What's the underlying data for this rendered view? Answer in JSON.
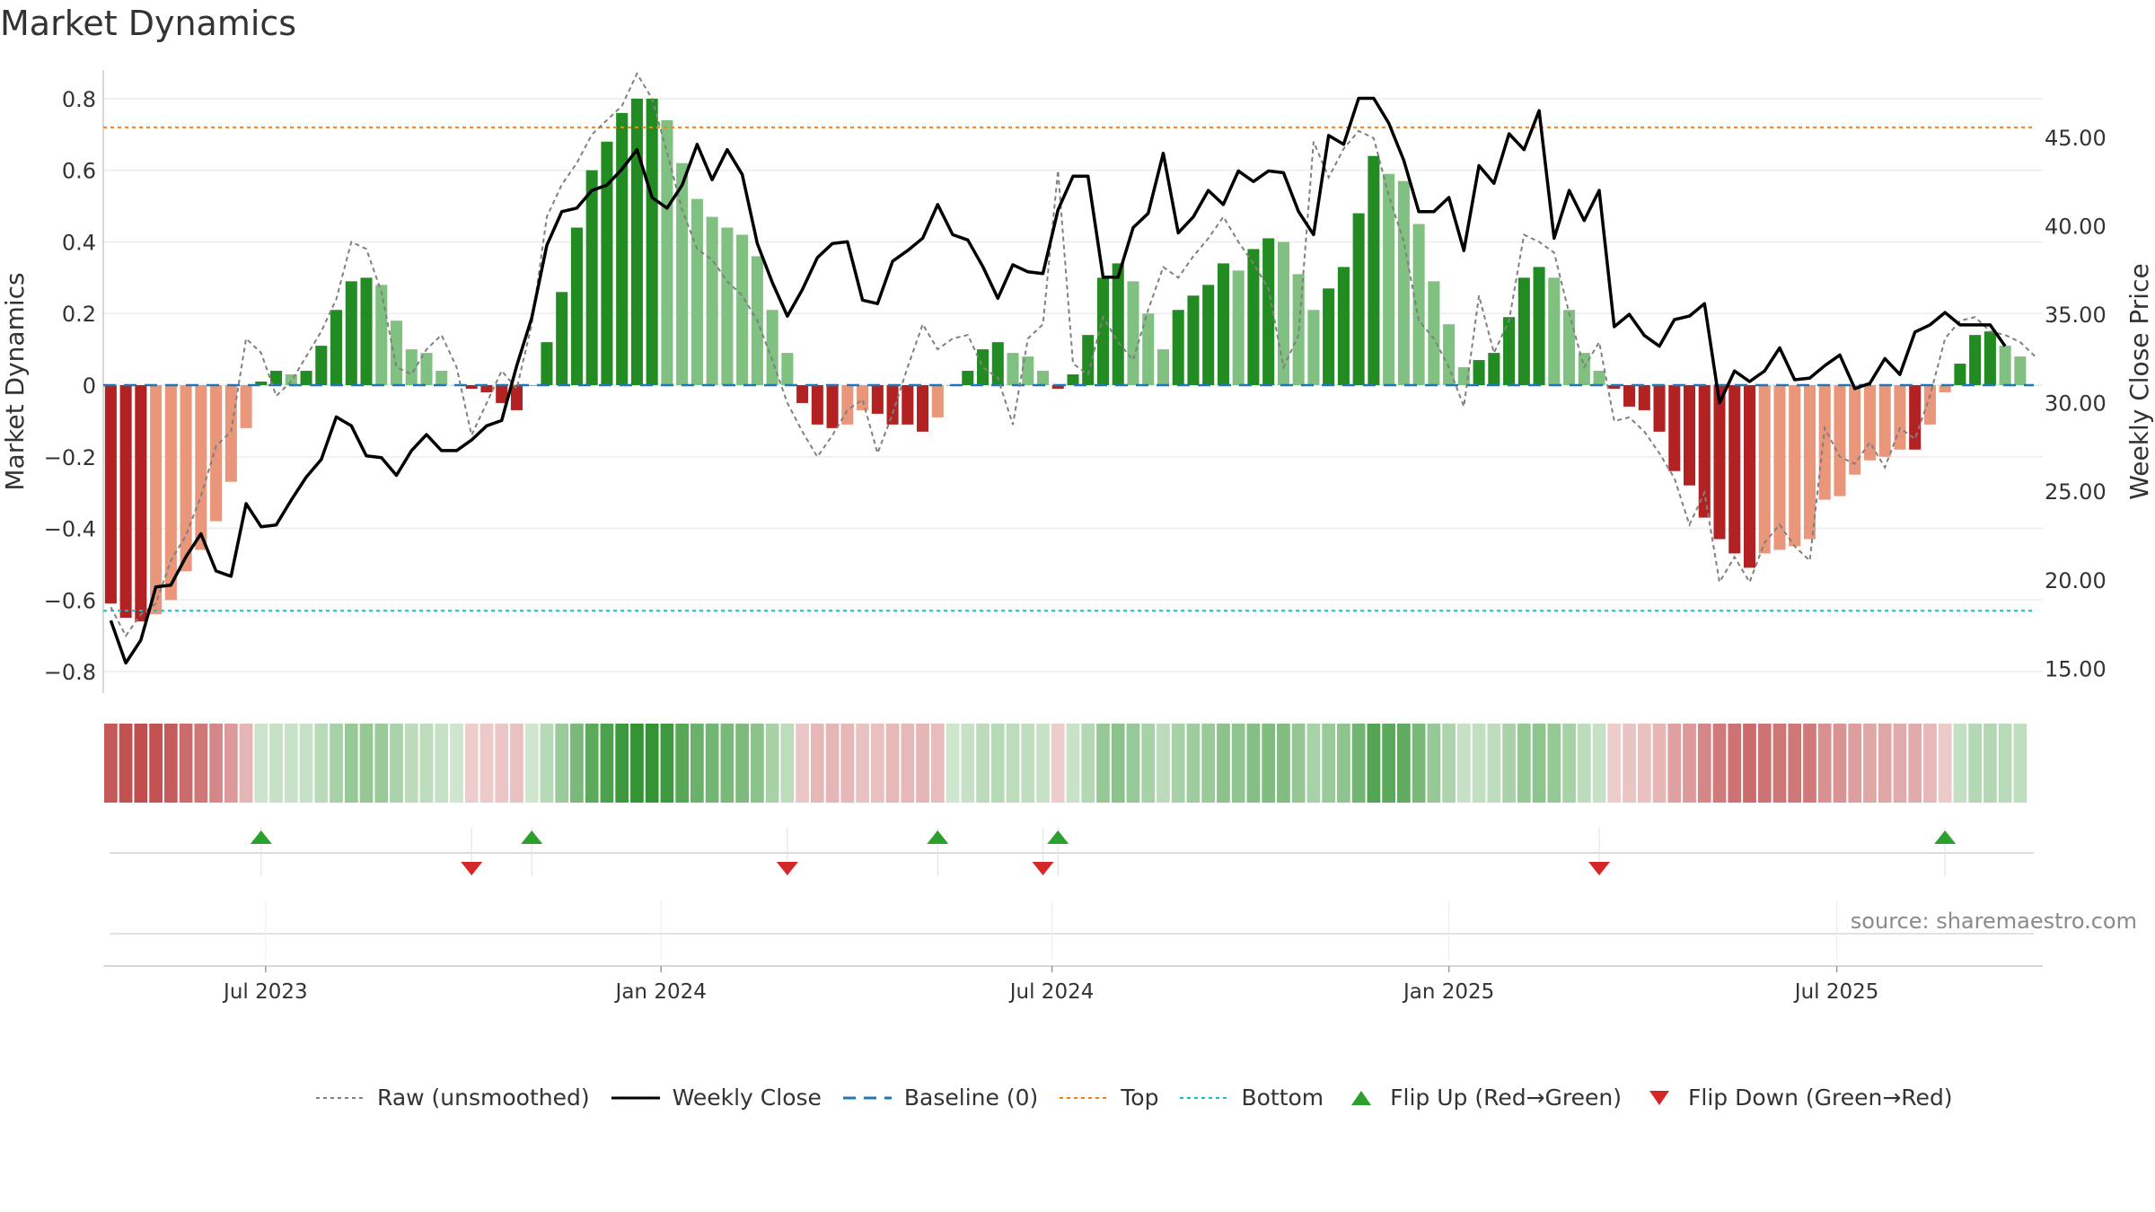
{
  "title": "Market Dynamics",
  "watermark": "source: sharemaestro.com",
  "colors": {
    "green_strong": "#228b22",
    "green_light": "#80c080",
    "red_strong": "#b22222",
    "red_light": "#e9967a",
    "close_line": "#000000",
    "raw_line": "#808080",
    "baseline": "#1f77b4",
    "top": "#ff7f0e",
    "bottom": "#17becf",
    "flip_up": "#2ca02c",
    "flip_down": "#d62728"
  },
  "legend": [
    {
      "label": "Raw (unsmoothed)",
      "icon": "gray-dotted-line"
    },
    {
      "label": "Weekly Close",
      "icon": "black-solid-line"
    },
    {
      "label": "Baseline (0)",
      "icon": "blue-dashed-line"
    },
    {
      "label": "Top",
      "icon": "orange-dotted-line"
    },
    {
      "label": "Bottom",
      "icon": "cyan-dotted-line"
    },
    {
      "label": "Flip Up (Red→Green)",
      "icon": "green-triangle-up"
    },
    {
      "label": "Flip Down (Green→Red)",
      "icon": "red-triangle-down"
    }
  ],
  "chart_data": {
    "type": "bar",
    "title": "Market Dynamics",
    "ylabel": "Market Dynamics",
    "y2label": "Weekly Close Price",
    "ylim": [
      -0.86,
      0.88
    ],
    "y2lim": [
      13.6,
      48.8
    ],
    "yticks": [
      "0.8",
      "0.6",
      "0.4",
      "0.2",
      "0",
      "−0.2",
      "−0.4",
      "−0.6",
      "−0.8"
    ],
    "ytick_values": [
      0.8,
      0.6,
      0.4,
      0.2,
      0,
      -0.2,
      -0.4,
      -0.6,
      -0.8
    ],
    "y2ticks": [
      "45.00",
      "40.00",
      "35.00",
      "30.00",
      "25.00",
      "20.00",
      "15.00"
    ],
    "y2tick_values": [
      45,
      40,
      35,
      30,
      25,
      20,
      15
    ],
    "xlim_weeks": [
      -0.5,
      128.5
    ],
    "xticks": [
      {
        "label": "Jul 2023",
        "week": 10.3
      },
      {
        "label": "Jan 2024",
        "week": 36.6
      },
      {
        "label": "Jul 2024",
        "week": 62.6
      },
      {
        "label": "Jan 2025",
        "week": 89.0
      },
      {
        "label": "Jul 2025",
        "week": 114.8
      }
    ],
    "top_level": 0.72,
    "bottom_level": -0.63,
    "baseline_level": 0,
    "grid": true,
    "legend_position": "bottom",
    "flip_up_weeks": [
      10,
      28,
      55,
      63,
      122
    ],
    "flip_down_weeks": [
      24,
      45,
      62,
      99
    ],
    "series": [
      {
        "name": "Market Dynamics",
        "values": [
          -0.61,
          -0.65,
          -0.66,
          -0.64,
          -0.6,
          -0.52,
          -0.46,
          -0.38,
          -0.27,
          -0.12,
          0.01,
          0.04,
          0.03,
          0.04,
          0.11,
          0.21,
          0.29,
          0.3,
          0.28,
          0.18,
          0.1,
          0.09,
          0.04,
          0.0,
          -0.01,
          -0.02,
          -0.05,
          -0.07,
          0.0,
          0.12,
          0.26,
          0.44,
          0.6,
          0.68,
          0.76,
          0.8,
          0.8,
          0.74,
          0.62,
          0.52,
          0.47,
          0.44,
          0.42,
          0.36,
          0.21,
          0.09,
          -0.05,
          -0.11,
          -0.12,
          -0.11,
          -0.07,
          -0.08,
          -0.11,
          -0.11,
          -0.13,
          -0.09,
          0.0,
          0.04,
          0.1,
          0.12,
          0.09,
          0.08,
          0.04,
          -0.01,
          0.03,
          0.14,
          0.3,
          0.34,
          0.29,
          0.2,
          0.1,
          0.21,
          0.25,
          0.28,
          0.34,
          0.32,
          0.38,
          0.41,
          0.4,
          0.31,
          0.21,
          0.27,
          0.33,
          0.48,
          0.64,
          0.59,
          0.57,
          0.45,
          0.29,
          0.17,
          0.05,
          0.07,
          0.09,
          0.19,
          0.3,
          0.33,
          0.3,
          0.21,
          0.09,
          0.04,
          -0.01,
          -0.06,
          -0.07,
          -0.13,
          -0.24,
          -0.28,
          -0.37,
          -0.43,
          -0.47,
          -0.51,
          -0.47,
          -0.46,
          -0.45,
          -0.43,
          -0.32,
          -0.31,
          -0.25,
          -0.21,
          -0.2,
          -0.18,
          -0.18,
          -0.11,
          -0.02,
          0.06,
          0.14,
          0.15,
          0.11,
          0.08
        ]
      },
      {
        "name": "Weekly Close",
        "axis": "right",
        "values": [
          17.7,
          15.3,
          16.6,
          19.6,
          19.7,
          21.3,
          22.6,
          20.5,
          20.2,
          24.3,
          23.0,
          23.1,
          24.5,
          25.8,
          26.8,
          29.2,
          28.7,
          27.0,
          26.9,
          25.9,
          27.3,
          28.2,
          27.3,
          27.3,
          27.9,
          28.7,
          29.0,
          32.1,
          34.8,
          38.9,
          40.8,
          41.0,
          42.0,
          42.3,
          43.2,
          44.3,
          41.6,
          41.0,
          42.3,
          44.6,
          42.6,
          44.3,
          42.9,
          39.0,
          36.8,
          34.9,
          36.4,
          38.2,
          39.0,
          39.1,
          35.8,
          35.6,
          38.0,
          38.6,
          39.3,
          41.2,
          39.5,
          39.2,
          37.7,
          35.9,
          37.8,
          37.4,
          37.3,
          40.9,
          42.8,
          42.8,
          37.1,
          37.1,
          39.9,
          40.7,
          44.1,
          39.6,
          40.5,
          42.0,
          41.2,
          43.1,
          42.5,
          43.1,
          43.0,
          40.8,
          39.5,
          45.1,
          44.6,
          47.2,
          47.2,
          45.8,
          43.7,
          40.8,
          40.8,
          41.6,
          38.6,
          43.4,
          42.4,
          45.2,
          44.3,
          46.5,
          39.3,
          42.0,
          40.3,
          42.0,
          34.3,
          35.0,
          33.8,
          33.2,
          34.7,
          34.9,
          35.6,
          30.0,
          31.8,
          31.2,
          31.8,
          33.1,
          31.3,
          31.4,
          32.1,
          32.7,
          30.8,
          31.1,
          32.5,
          31.6,
          34.0,
          34.4,
          35.1,
          34.4,
          34.4,
          34.4,
          33.2
        ]
      },
      {
        "name": "Raw (unsmoothed)",
        "values": [
          -0.62,
          -0.7,
          -0.64,
          -0.61,
          -0.49,
          -0.42,
          -0.31,
          -0.17,
          -0.13,
          0.13,
          0.09,
          -0.03,
          0.01,
          0.08,
          0.15,
          0.24,
          0.4,
          0.38,
          0.26,
          0.05,
          0.03,
          0.1,
          0.14,
          0.05,
          -0.14,
          -0.05,
          0.04,
          -0.01,
          0.17,
          0.47,
          0.56,
          0.62,
          0.7,
          0.74,
          0.78,
          0.87,
          0.8,
          0.65,
          0.49,
          0.38,
          0.35,
          0.29,
          0.25,
          0.18,
          0.07,
          -0.05,
          -0.13,
          -0.2,
          -0.14,
          -0.07,
          -0.04,
          -0.19,
          -0.08,
          0.05,
          0.17,
          0.1,
          0.13,
          0.14,
          0.05,
          0.02,
          -0.11,
          0.13,
          0.17,
          0.6,
          0.06,
          0.03,
          0.19,
          0.12,
          0.07,
          0.21,
          0.33,
          0.3,
          0.36,
          0.41,
          0.47,
          0.4,
          0.34,
          0.27,
          0.05,
          0.14,
          0.68,
          0.58,
          0.66,
          0.71,
          0.69,
          0.53,
          0.4,
          0.18,
          0.13,
          0.05,
          -0.06,
          0.25,
          0.09,
          0.18,
          0.42,
          0.4,
          0.37,
          0.2,
          0.05,
          0.12,
          -0.1,
          -0.09,
          -0.13,
          -0.19,
          -0.26,
          -0.39,
          -0.3,
          -0.55,
          -0.48,
          -0.55,
          -0.44,
          -0.39,
          -0.45,
          -0.49,
          -0.12,
          -0.2,
          -0.22,
          -0.16,
          -0.23,
          -0.12,
          -0.15,
          -0.03,
          0.13,
          0.18,
          0.19,
          0.15,
          0.14,
          0.12,
          0.08
        ]
      }
    ],
    "weekly_strip": {
      "description": "color-coded strip under main plot, one cell per week",
      "signs": "same as Market Dynamics series"
    }
  }
}
